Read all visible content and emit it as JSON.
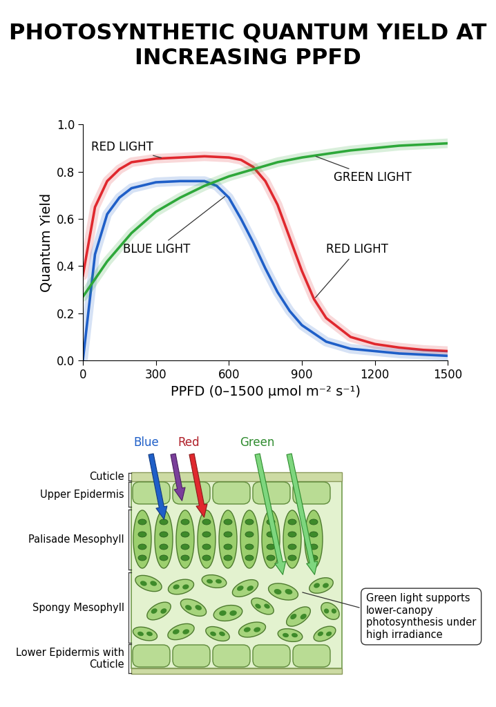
{
  "chart_data": {
    "type": "line",
    "title": "PHOTOSYNTHETIC QUANTUM YIELD AT INCREASING PPFD",
    "x_label": "PPFD (0–1500 μmol m⁻² s⁻¹)",
    "y_label": "Quantum Yield",
    "xlim": [
      0,
      1500
    ],
    "xticks": [
      0,
      300,
      600,
      900,
      1200,
      1500
    ],
    "ylim": [
      0,
      1.0
    ],
    "yticks": [
      {
        "value": 0,
        "label": "0.0"
      },
      0.2,
      0.4,
      0.6,
      0.8,
      {
        "value": 1,
        "label": "1.0"
      }
    ],
    "grid": false,
    "series": [
      {
        "name": "RED LIGHT",
        "color": "#e0282e",
        "x": [
          0,
          50,
          100,
          150,
          200,
          300,
          400,
          500,
          600,
          650,
          700,
          750,
          800,
          850,
          900,
          950,
          1000,
          1100,
          1200,
          1300,
          1400,
          1500
        ],
        "values": [
          0.36,
          0.65,
          0.76,
          0.81,
          0.84,
          0.855,
          0.86,
          0.865,
          0.86,
          0.85,
          0.82,
          0.76,
          0.66,
          0.52,
          0.38,
          0.26,
          0.18,
          0.1,
          0.07,
          0.055,
          0.045,
          0.04
        ]
      },
      {
        "name": "BLUE LIGHT",
        "color": "#1f5fc8",
        "x": [
          0,
          50,
          100,
          150,
          200,
          300,
          400,
          500,
          550,
          600,
          650,
          700,
          750,
          800,
          850,
          900,
          1000,
          1100,
          1200,
          1300,
          1400,
          1500
        ],
        "values": [
          0.0,
          0.45,
          0.62,
          0.69,
          0.73,
          0.755,
          0.76,
          0.76,
          0.74,
          0.69,
          0.6,
          0.5,
          0.39,
          0.29,
          0.21,
          0.15,
          0.08,
          0.05,
          0.04,
          0.03,
          0.025,
          0.02
        ]
      },
      {
        "name": "GREEN LIGHT",
        "color": "#2ea83a",
        "x": [
          0,
          100,
          200,
          300,
          400,
          500,
          600,
          700,
          800,
          900,
          1000,
          1100,
          1200,
          1300,
          1400,
          1500
        ],
        "values": [
          0.27,
          0.42,
          0.54,
          0.63,
          0.69,
          0.74,
          0.78,
          0.81,
          0.84,
          0.86,
          0.875,
          0.89,
          0.9,
          0.91,
          0.915,
          0.92
        ]
      }
    ],
    "annotations": [
      {
        "text": "RED LIGHT",
        "series": "RED LIGHT"
      },
      {
        "text": "GREEN LIGHT",
        "series": "GREEN LIGHT"
      },
      {
        "text": "BLUE LIGHT",
        "series": "BLUE LIGHT"
      },
      {
        "text": "RED LIGHT",
        "series": "RED LIGHT"
      }
    ]
  },
  "diagram": {
    "layers": [
      "Cuticle",
      "Upper Epidermis",
      "Palisade Mesophyll",
      "Spongy Mesophyll",
      "Lower Epidermis with Cuticle"
    ],
    "light": [
      {
        "label": "Blue",
        "color": "#1f5fc8"
      },
      {
        "label": "Red",
        "color": "#b0202a"
      },
      {
        "label": "Green",
        "color": "#2e8b2e"
      }
    ],
    "callout": "Green light supports lower-canopy photosynthesis under high irradiance"
  }
}
